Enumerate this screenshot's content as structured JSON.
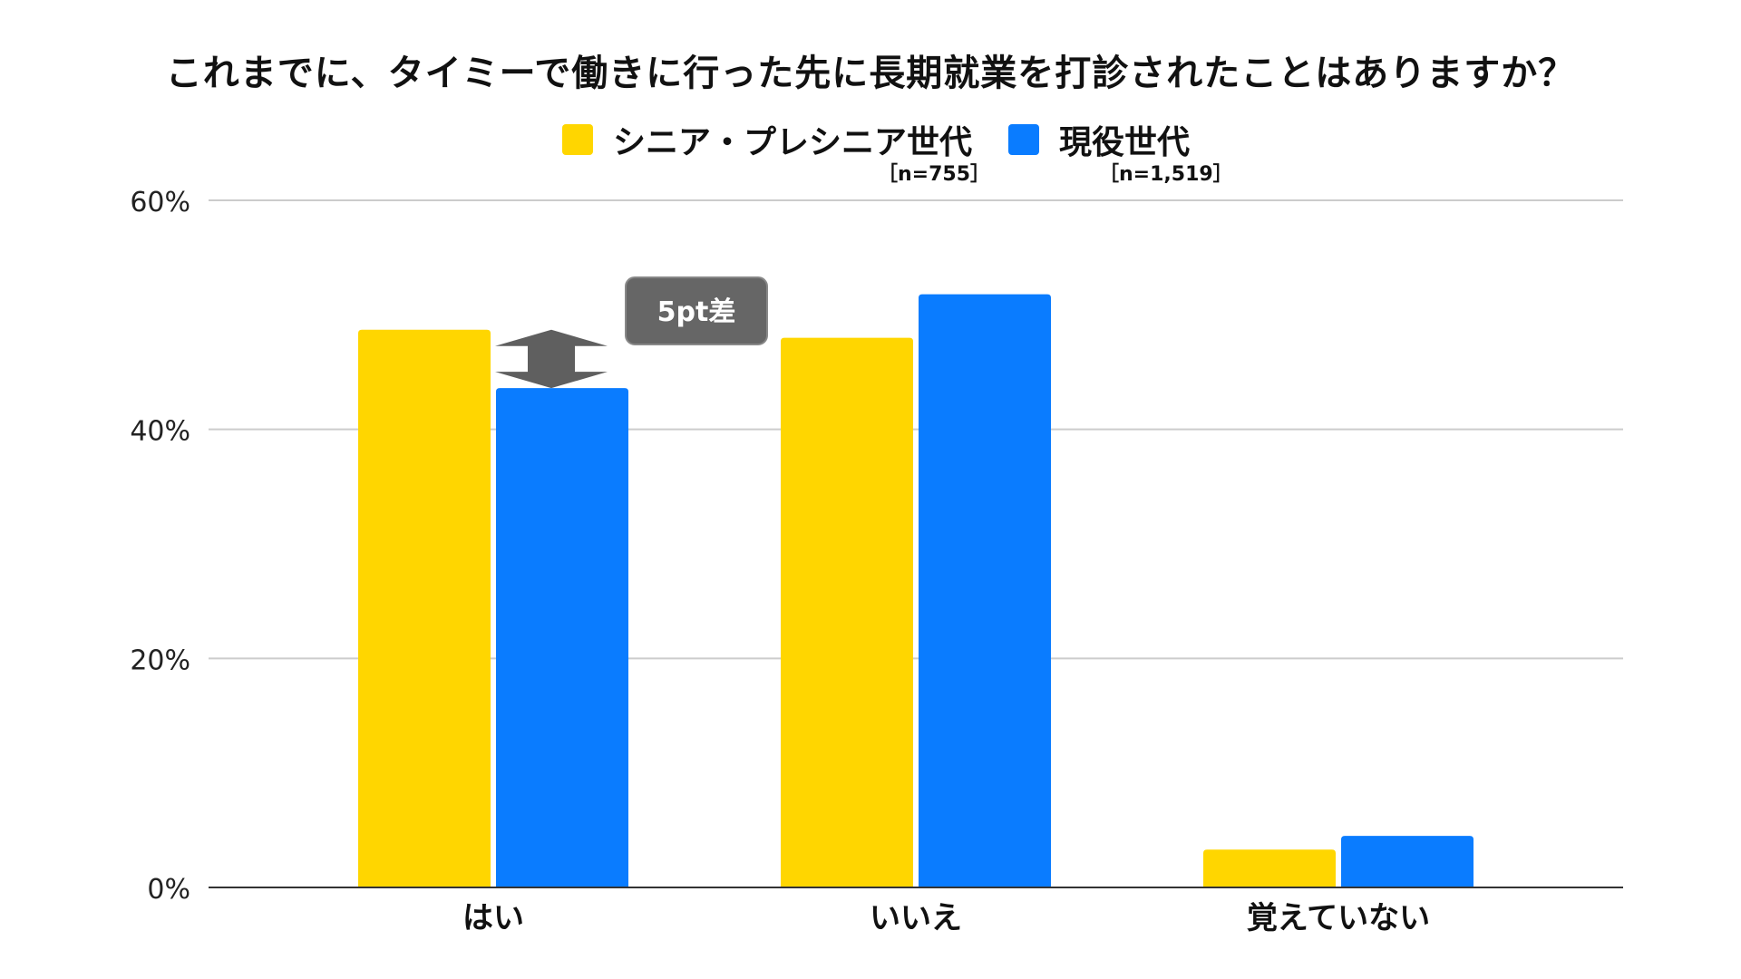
{
  "chart_data": {
    "type": "bar",
    "title": "これまでに、タイミーで働きに行った先に長期就業を打診されたことはありますか？",
    "categories": [
      "はい",
      "いいえ",
      "覚えていない"
    ],
    "series": [
      {
        "name": "シニア・プレシニア世代",
        "n_label": "［n=755］",
        "color": "#FFD600",
        "values": [
          48.7,
          48.0,
          3.3
        ]
      },
      {
        "name": "現役世代",
        "n_label": "［n=1,519］",
        "color": "#0A7CFF",
        "values": [
          43.6,
          51.8,
          4.5
        ]
      }
    ],
    "ylim": [
      0,
      60
    ],
    "yticks": [
      "0%",
      "20%",
      "40%",
      "60%"
    ],
    "ytick_values": [
      0,
      20,
      40,
      60
    ],
    "grid": true,
    "legend_position": "top",
    "annotation": {
      "text": "5pt差",
      "category": "はい"
    }
  }
}
